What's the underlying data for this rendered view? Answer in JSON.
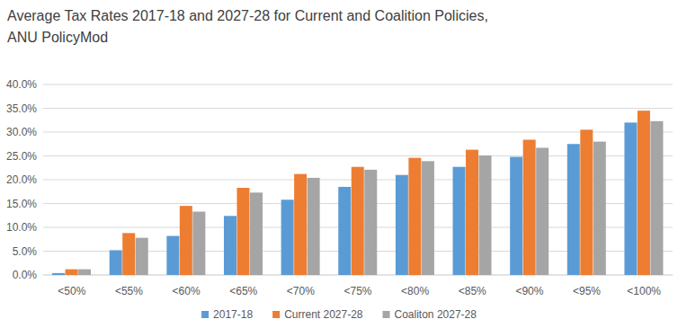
{
  "chart_data": {
    "type": "bar",
    "title": "Average Tax Rates 2017-18 and 2027-28 for Current and Coalition Policies, ANU PolicyMod",
    "categories": [
      "<50%",
      "<55%",
      "<60%",
      "<65%",
      "<70%",
      "<75%",
      "<80%",
      "<85%",
      "<90%",
      "<95%",
      "<100%"
    ],
    "series": [
      {
        "name": "2017-18",
        "color": "#5b9bd5",
        "values": [
          0.4,
          5.2,
          8.2,
          12.4,
          15.8,
          18.5,
          21.0,
          22.7,
          24.8,
          27.5,
          32.0
        ]
      },
      {
        "name": "Current 2027-28",
        "color": "#ed7d31",
        "values": [
          1.2,
          8.8,
          14.5,
          18.3,
          21.2,
          22.7,
          24.6,
          26.3,
          28.4,
          30.5,
          34.5
        ]
      },
      {
        "name": "Coaliton 2027-28",
        "color": "#a5a5a5",
        "values": [
          1.2,
          7.8,
          13.3,
          17.3,
          20.4,
          22.1,
          23.9,
          25.1,
          26.7,
          28.0,
          32.3
        ]
      }
    ],
    "ylim": [
      0,
      40
    ],
    "yticks": [
      {
        "value": 0,
        "label": "0.0%"
      },
      {
        "value": 5,
        "label": "5.0%"
      },
      {
        "value": 10,
        "label": "10.0%"
      },
      {
        "value": 15,
        "label": "15.0%"
      },
      {
        "value": 20,
        "label": "20.0%"
      },
      {
        "value": 25,
        "label": "25.0%"
      },
      {
        "value": 30,
        "label": "30.0%"
      },
      {
        "value": 35,
        "label": "35.0%"
      },
      {
        "value": 40,
        "label": "40.0%"
      }
    ],
    "grid": true,
    "legend": "bottom"
  }
}
